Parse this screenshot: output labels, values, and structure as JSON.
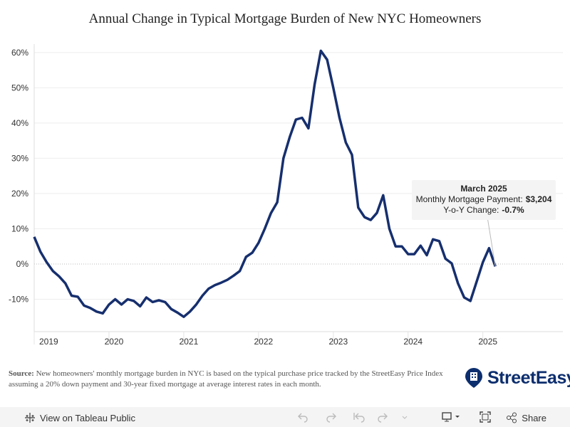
{
  "chart_data": {
    "type": "line",
    "title": "Annual Change in Typical Mortgage Burden of New NYC Homeowners",
    "x": [
      2019,
      2019.083,
      2019.167,
      2019.25,
      2019.333,
      2019.417,
      2019.5,
      2019.583,
      2019.667,
      2019.75,
      2019.833,
      2019.917,
      2020,
      2020.083,
      2020.167,
      2020.25,
      2020.333,
      2020.417,
      2020.5,
      2020.583,
      2020.667,
      2020.75,
      2020.833,
      2020.917,
      2021,
      2021.083,
      2021.167,
      2021.25,
      2021.333,
      2021.417,
      2021.5,
      2021.583,
      2021.667,
      2021.75,
      2021.833,
      2021.917,
      2022,
      2022.083,
      2022.167,
      2022.25,
      2022.333,
      2022.417,
      2022.5,
      2022.583,
      2022.667,
      2022.75,
      2022.833,
      2022.917,
      2023,
      2023.083,
      2023.167,
      2023.25,
      2023.333,
      2023.417,
      2023.5,
      2023.583,
      2023.667,
      2023.75,
      2023.833,
      2023.917,
      2024,
      2024.083,
      2024.167,
      2024.25,
      2024.333,
      2024.417,
      2024.5,
      2024.583,
      2024.667,
      2024.75,
      2024.833,
      2024.917,
      2025,
      2025.083,
      2025.167
    ],
    "values": [
      7.7,
      3.5,
      0.5,
      -2,
      -3.5,
      -5.5,
      -9,
      -9.3,
      -11.8,
      -12.5,
      -13.5,
      -14,
      -11.5,
      -10,
      -11.5,
      -10,
      -10.5,
      -12,
      -9.5,
      -10.8,
      -10.3,
      -10.8,
      -12.8,
      -13.8,
      -15,
      -13.5,
      -11.5,
      -9,
      -7,
      -6,
      -5.3,
      -4.5,
      -3.3,
      -2,
      2,
      3.2,
      6,
      10,
      14.5,
      17.5,
      30,
      36,
      41,
      41.5,
      38.5,
      51,
      60.5,
      58,
      50,
      41.5,
      34.5,
      31,
      16,
      13.3,
      12.5,
      14.5,
      19.5,
      10,
      5,
      5,
      2.8,
      2.8,
      5.2,
      2.5,
      7,
      6.5,
      1.5,
      0.2,
      -5.5,
      -9.5,
      -10.5,
      -5,
      0.5,
      4.5,
      -0.7
    ],
    "color": "#162f6e",
    "xlim": [
      2019,
      2026.07
    ],
    "xticks": [
      2019,
      2020,
      2021,
      2022,
      2023,
      2024,
      2025
    ],
    "ylim": [
      -19.2,
      62.4
    ],
    "yticks": [
      {
        "value": -10,
        "label": "-10%"
      },
      {
        "value": 0,
        "label": "0%"
      },
      {
        "value": 10,
        "label": "10%"
      },
      {
        "value": 20,
        "label": "20%"
      },
      {
        "value": 30,
        "label": "30%"
      },
      {
        "value": 40,
        "label": "40%"
      },
      {
        "value": 50,
        "label": "50%"
      },
      {
        "value": 60,
        "label": "60%"
      }
    ],
    "grid": true,
    "annotation": {
      "title": "March 2025",
      "lines": [
        {
          "label": "Monthly Mortgage Payment:",
          "value": "$3,204"
        },
        {
          "label": "Y-o-Y Change:",
          "value": "-0.7%"
        }
      ]
    }
  },
  "source": {
    "label": "Source:",
    "text": "New homeowners' monthly mortgage burden in NYC is based on the typical purchase price tracked by the StreetEasy Price Index assuming a 20% down payment and 30-year fixed mortgage at average interest rates in each month."
  },
  "brand": "StreetEasy",
  "toolbar": {
    "view": "View on Tableau Public",
    "share": "Share"
  }
}
